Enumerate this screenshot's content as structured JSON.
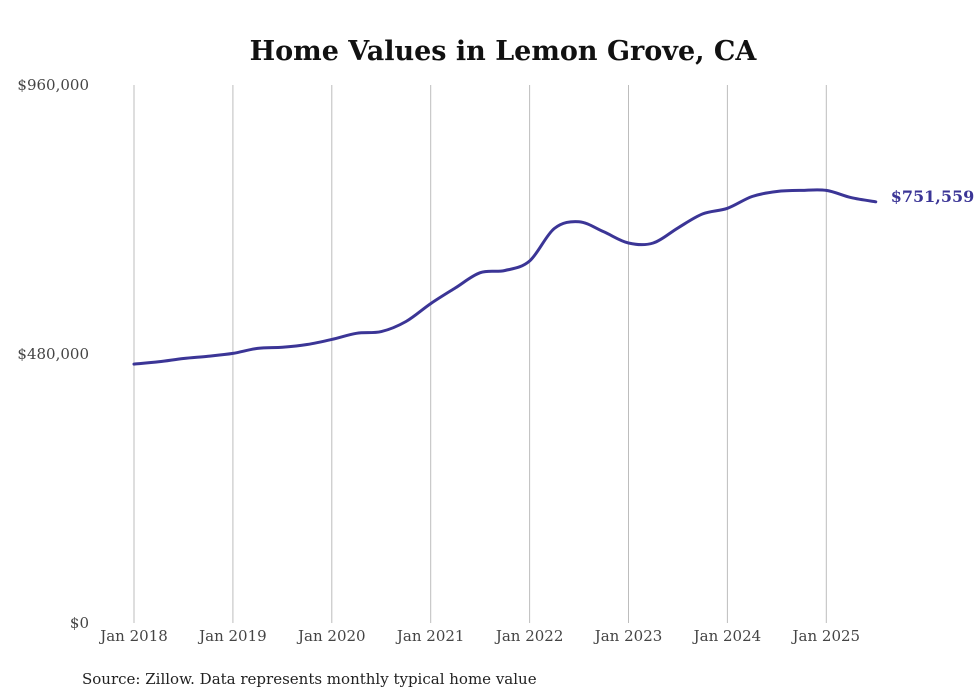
{
  "chart_data": {
    "type": "line",
    "title": "Home Values in Lemon Grove, CA",
    "xlabel": "",
    "ylabel": "",
    "x_ticks": [
      "Jan 2018",
      "Jan 2019",
      "Jan 2020",
      "Jan 2021",
      "Jan 2022",
      "Jan 2023",
      "Jan 2024",
      "Jan 2025"
    ],
    "y_ticks": [
      "$0",
      "$480,000",
      "$960,000"
    ],
    "ylim": [
      0,
      960000
    ],
    "xlim": [
      "2018-01",
      "2025-07"
    ],
    "grid": "vertical lines at January of each year",
    "line_color": "#3b3596",
    "end_label": "$751,559",
    "series": [
      {
        "values": [
          [
            "2018-01",
            462000
          ],
          [
            "2018-04",
            466000
          ],
          [
            "2018-07",
            472000
          ],
          [
            "2018-10",
            476000
          ],
          [
            "2019-01",
            481000
          ],
          [
            "2019-04",
            490000
          ],
          [
            "2019-07",
            492000
          ],
          [
            "2019-10",
            497000
          ],
          [
            "2020-01",
            506000
          ],
          [
            "2020-04",
            517000
          ],
          [
            "2020-07",
            520000
          ],
          [
            "2020-10",
            538000
          ],
          [
            "2021-01",
            570000
          ],
          [
            "2021-04",
            598000
          ],
          [
            "2021-07",
            625000
          ],
          [
            "2021-10",
            629000
          ],
          [
            "2022-01",
            646000
          ],
          [
            "2022-04",
            704000
          ],
          [
            "2022-07",
            716000
          ],
          [
            "2022-10",
            698000
          ],
          [
            "2023-01",
            678000
          ],
          [
            "2023-04",
            678000
          ],
          [
            "2023-07",
            705000
          ],
          [
            "2023-10",
            730000
          ],
          [
            "2024-01",
            740000
          ],
          [
            "2024-04",
            761000
          ],
          [
            "2024-07",
            770000
          ],
          [
            "2024-10",
            772000
          ],
          [
            "2025-01",
            772000
          ],
          [
            "2025-04",
            759000
          ],
          [
            "2025-07",
            751559
          ]
        ]
      }
    ]
  },
  "source_note": "Source: Zillow. Data represents monthly typical home value"
}
